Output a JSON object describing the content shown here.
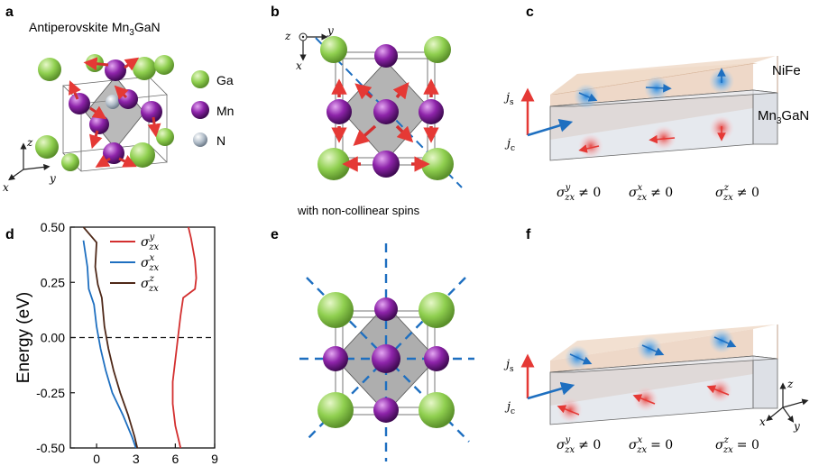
{
  "panels": {
    "a": {
      "label": "a",
      "title": "Antiperovskite Mn",
      "title_sub": "3",
      "title_tail": "GaN",
      "legend": [
        {
          "name": "Ga",
          "color": "#9ccc65"
        },
        {
          "name": "Mn",
          "color": "#7b1fa2"
        },
        {
          "name": "N",
          "color": "#b0bec5"
        }
      ],
      "axes": {
        "z": "z",
        "y": "y",
        "x": "x"
      }
    },
    "b": {
      "label": "b",
      "caption": "with non-collinear spins",
      "axes": {
        "z": "z",
        "y": "y",
        "x": "x"
      }
    },
    "c": {
      "label": "c",
      "top_layer": "NiFe",
      "bottom_layer": "Mn",
      "bottom_layer_sub": "3",
      "bottom_layer_tail": "GaN",
      "js": "j",
      "js_sub": "s",
      "jc": "j",
      "jc_sub": "c",
      "conds": [
        {
          "sup": "y",
          "rel": "≠ 0"
        },
        {
          "sup": "x",
          "rel": "≠ 0"
        },
        {
          "sup": "z",
          "rel": "≠ 0"
        }
      ]
    },
    "d": {
      "label": "d"
    },
    "e": {
      "label": "e"
    },
    "f": {
      "label": "f",
      "js": "j",
      "js_sub": "s",
      "jc": "j",
      "jc_sub": "c",
      "axes": {
        "z": "z",
        "y": "y",
        "x": "x"
      },
      "conds": [
        {
          "sup": "y",
          "rel": "≠ 0"
        },
        {
          "sup": "x",
          "rel": "= 0"
        },
        {
          "sup": "z",
          "rel": "= 0"
        }
      ]
    }
  },
  "chart_data": {
    "type": "line",
    "ylabel": "Energy (eV)",
    "xlabel": "",
    "xlim": [
      -2,
      9
    ],
    "ylim": [
      -0.5,
      0.5
    ],
    "xticks": [
      "0",
      "3",
      "6",
      "9"
    ],
    "yticks": [
      "0.50",
      "0.25",
      "0.00",
      "-0.25",
      "-0.50"
    ],
    "fermi_line": 0.0,
    "series": [
      {
        "name": "σzx^y",
        "sigma_sup": "y",
        "color": "#d32f2f",
        "points": [
          [
            7.0,
            0.5
          ],
          [
            7.2,
            0.45
          ],
          [
            7.5,
            0.35
          ],
          [
            7.6,
            0.27
          ],
          [
            7.5,
            0.22
          ],
          [
            6.6,
            0.18
          ],
          [
            6.4,
            0.1
          ],
          [
            6.2,
            0.0
          ],
          [
            6.0,
            -0.1
          ],
          [
            5.8,
            -0.2
          ],
          [
            5.8,
            -0.3
          ],
          [
            6.0,
            -0.4
          ],
          [
            6.4,
            -0.5
          ]
        ]
      },
      {
        "name": "σzx^x",
        "sigma_sup": "x",
        "color": "#1e6fc0",
        "points": [
          [
            -1.0,
            0.44
          ],
          [
            -0.7,
            0.32
          ],
          [
            -0.6,
            0.22
          ],
          [
            -0.2,
            0.15
          ],
          [
            0.0,
            0.05
          ],
          [
            0.3,
            -0.05
          ],
          [
            0.7,
            -0.15
          ],
          [
            1.2,
            -0.25
          ],
          [
            2.0,
            -0.35
          ],
          [
            2.7,
            -0.45
          ],
          [
            3.0,
            -0.5
          ]
        ]
      },
      {
        "name": "σzx^z",
        "sigma_sup": "z",
        "color": "#4e2818",
        "points": [
          [
            -1.0,
            0.5
          ],
          [
            0.0,
            0.43
          ],
          [
            -0.1,
            0.32
          ],
          [
            0.1,
            0.24
          ],
          [
            0.4,
            0.18
          ],
          [
            0.6,
            0.05
          ],
          [
            0.9,
            -0.05
          ],
          [
            1.3,
            -0.15
          ],
          [
            1.8,
            -0.25
          ],
          [
            2.4,
            -0.35
          ],
          [
            2.9,
            -0.45
          ],
          [
            3.1,
            -0.5
          ]
        ]
      }
    ]
  }
}
